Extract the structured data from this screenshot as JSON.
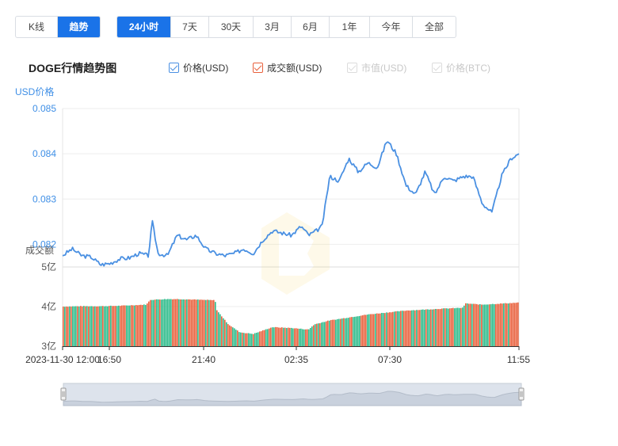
{
  "toolbar": {
    "view_buttons": [
      {
        "label": "K线",
        "active": false
      },
      {
        "label": "趋势",
        "active": true
      }
    ],
    "range_buttons": [
      {
        "label": "24小时",
        "active": true
      },
      {
        "label": "7天",
        "active": false
      },
      {
        "label": "30天",
        "active": false
      },
      {
        "label": "3月",
        "active": false
      },
      {
        "label": "6月",
        "active": false
      },
      {
        "label": "1年",
        "active": false
      },
      {
        "label": "今年",
        "active": false
      },
      {
        "label": "全部",
        "active": false
      }
    ]
  },
  "chart_title": "DOGE行情趋势图",
  "legend": [
    {
      "label": "价格(USD)",
      "checked": true,
      "color": "#4a90e2"
    },
    {
      "label": "成交额(USD)",
      "checked": true,
      "color": "#e8603c"
    },
    {
      "label": "市值(USD)",
      "checked": false,
      "color": "#cccccc"
    },
    {
      "label": "价格(BTC)",
      "checked": false,
      "color": "#cccccc"
    }
  ],
  "colors": {
    "price_line": "#4a90e2",
    "vol_up": "#e8603c",
    "vol_down": "#2dbb8a",
    "active_button": "#1a73e8"
  },
  "chart_data": {
    "type": "line",
    "title": "DOGE行情趋势图",
    "ylabel": "USD价格",
    "ylim": [
      0.0815,
      0.085
    ],
    "yticks": [
      "0.085",
      "0.084",
      "0.083",
      "0.082"
    ],
    "x_ticks": [
      "2023-11-30 12:00",
      "16:50",
      "21:40",
      "02:35",
      "07:30",
      "11:55"
    ],
    "price_series": {
      "name": "价格(USD)",
      "x_hours": [
        0,
        0.5,
        1.0,
        1.5,
        2.0,
        2.5,
        3.0,
        3.5,
        4.0,
        4.5,
        4.7,
        5.0,
        5.5,
        6.0,
        6.5,
        7.0,
        7.5,
        8.0,
        8.5,
        9.0,
        9.5,
        10.0,
        10.5,
        11.0,
        11.5,
        12.0,
        12.5,
        12.9,
        13.3,
        13.6,
        14.0,
        14.5,
        15.0,
        15.5,
        16.0,
        16.5,
        17.0,
        17.5,
        18.0,
        18.5,
        19.0,
        19.5,
        20.0,
        20.5,
        21.0,
        21.5,
        22.0,
        22.5,
        23.0,
        23.5,
        23.917
      ],
      "values": [
        0.08175,
        0.0819,
        0.08175,
        0.08172,
        0.08155,
        0.08158,
        0.08168,
        0.0817,
        0.0818,
        0.08175,
        0.0825,
        0.0818,
        0.08175,
        0.0822,
        0.0821,
        0.0822,
        0.0819,
        0.0818,
        0.08175,
        0.0818,
        0.0819,
        0.0818,
        0.0821,
        0.0823,
        0.08225,
        0.0822,
        0.0824,
        0.0822,
        0.0823,
        0.0824,
        0.0835,
        0.0834,
        0.0839,
        0.0836,
        0.0838,
        0.0837,
        0.0843,
        0.084,
        0.0833,
        0.0831,
        0.0836,
        0.0831,
        0.0835,
        0.0834,
        0.0835,
        0.0835,
        0.0829,
        0.0827,
        0.0835,
        0.0839,
        0.084
      ]
    },
    "volume_series": {
      "name": "成交额(USD)",
      "ylabel": "成交额",
      "ylim": [
        300000000,
        500000000
      ],
      "yticks": [
        "5亿",
        "4亿",
        "3亿"
      ],
      "x_hours": [
        0,
        1,
        2,
        3,
        4.4,
        4.6,
        5.5,
        6,
        8,
        8.1,
        8.7,
        9.3,
        10,
        11,
        12,
        12.9,
        13.2,
        14,
        16,
        18,
        20,
        21,
        21.1,
        22,
        23.917
      ],
      "values": [
        400000000,
        401000000,
        401000000,
        402000000,
        405000000,
        417000000,
        419000000,
        419000000,
        416000000,
        390000000,
        355000000,
        335000000,
        331000000,
        348000000,
        346000000,
        342000000,
        355000000,
        365000000,
        380000000,
        390000000,
        395000000,
        397000000,
        408000000,
        405000000,
        410000000
      ]
    }
  }
}
